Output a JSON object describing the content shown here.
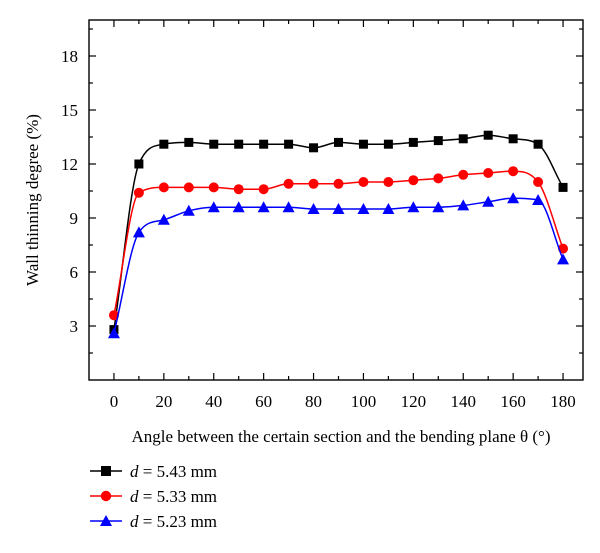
{
  "chart_data": {
    "type": "line",
    "xlabel": "Angle between the certain section and the bending plane θ (°)",
    "ylabel": "Wall thinning degree (%)",
    "xlim": [
      -10,
      188
    ],
    "ylim": [
      0,
      20
    ],
    "xticks": [
      "0",
      "20",
      "40",
      "60",
      "80",
      "100",
      "120",
      "140",
      "160",
      "180"
    ],
    "yticks": [
      "3",
      "6",
      "9",
      "12",
      "15",
      "18"
    ],
    "grid": false,
    "legend_position": "bottom-left, below plot",
    "x": [
      0,
      10,
      20,
      30,
      40,
      50,
      60,
      70,
      80,
      90,
      100,
      110,
      120,
      130,
      140,
      150,
      160,
      170,
      180
    ],
    "series": [
      {
        "name": "d = 5.43 mm",
        "color": "#000000",
        "marker": "square",
        "values": [
          2.8,
          12.0,
          13.1,
          13.2,
          13.1,
          13.1,
          13.1,
          13.1,
          12.9,
          13.2,
          13.1,
          13.1,
          13.2,
          13.3,
          13.4,
          13.6,
          13.4,
          13.1,
          10.7
        ]
      },
      {
        "name": "d = 5.33 mm",
        "color": "#ff0000",
        "marker": "circle",
        "values": [
          3.6,
          10.4,
          10.7,
          10.7,
          10.7,
          10.6,
          10.6,
          10.9,
          10.9,
          10.9,
          11.0,
          11.0,
          11.1,
          11.2,
          11.4,
          11.5,
          11.6,
          11.0,
          7.3
        ]
      },
      {
        "name": "d = 5.23 mm",
        "color": "#0000ff",
        "marker": "triangle",
        "values": [
          2.6,
          8.2,
          8.9,
          9.4,
          9.6,
          9.6,
          9.6,
          9.6,
          9.5,
          9.5,
          9.5,
          9.5,
          9.6,
          9.6,
          9.7,
          9.9,
          10.1,
          10.0,
          6.7
        ]
      }
    ]
  },
  "legend": [
    {
      "d": "d",
      "eq": " = 5.43 mm"
    },
    {
      "d": "d",
      "eq": " = 5.33 mm"
    },
    {
      "d": "d",
      "eq": " = 5.23 mm"
    }
  ]
}
